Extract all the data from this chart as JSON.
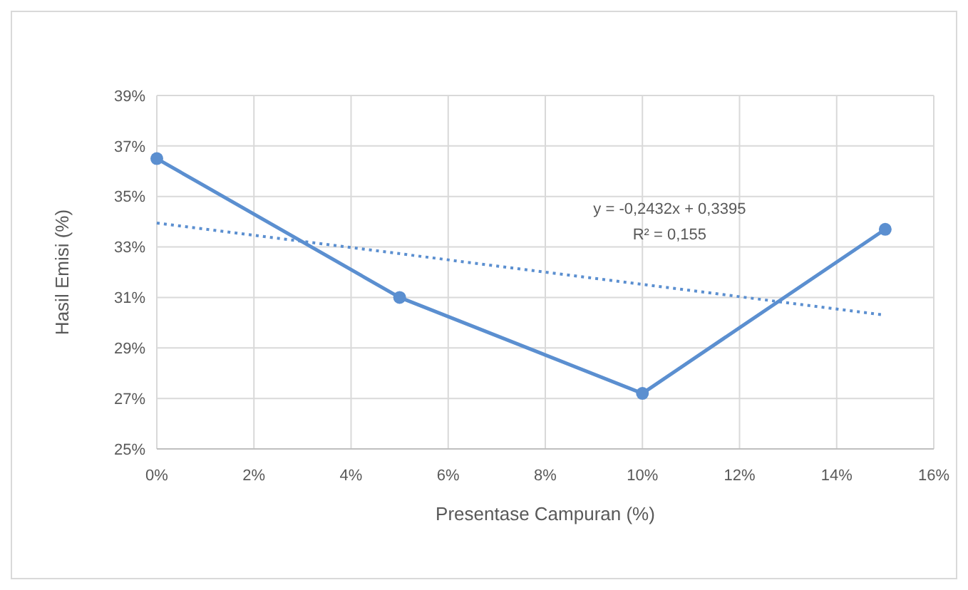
{
  "chart_data": {
    "type": "line",
    "xlabel": "Presentase Campuran (%)",
    "ylabel": "Hasil Emisi (%)",
    "x": [
      0,
      5,
      10,
      15
    ],
    "series": [
      {
        "color": "#5b8fd0",
        "values": [
          36.5,
          31.0,
          27.2,
          33.7
        ],
        "marker": "circle",
        "line_style": "solid"
      },
      {
        "type": "line",
        "color": "#5b8fd0",
        "x": [
          0,
          15
        ],
        "values": [
          33.95,
          30.3
        ],
        "marker": "none",
        "line_style": "dotted"
      }
    ],
    "xlim": [
      0,
      16
    ],
    "xticks": [
      {
        "value": 0,
        "label": "0%"
      },
      {
        "value": 2,
        "label": "2%"
      },
      {
        "value": 4,
        "label": "4%"
      },
      {
        "value": 6,
        "label": "6%"
      },
      {
        "value": 8,
        "label": "8%"
      },
      {
        "value": 10,
        "label": "10%"
      },
      {
        "value": 12,
        "label": "12%"
      },
      {
        "value": 14,
        "label": "14%"
      },
      {
        "value": 16,
        "label": "16%"
      }
    ],
    "ylim": [
      25,
      39
    ],
    "yticks": [
      {
        "value": 25,
        "label": "25%"
      },
      {
        "value": 27,
        "label": "27%"
      },
      {
        "value": 29,
        "label": "29%"
      },
      {
        "value": 31,
        "label": "31%"
      },
      {
        "value": 33,
        "label": "33%"
      },
      {
        "value": 35,
        "label": "35%"
      },
      {
        "value": 37,
        "label": "37%"
      },
      {
        "value": 39,
        "label": "39%"
      }
    ],
    "grid": true,
    "annotations": [
      "y = -0,2432x + 0,3395",
      "R² = 0,155"
    ]
  }
}
